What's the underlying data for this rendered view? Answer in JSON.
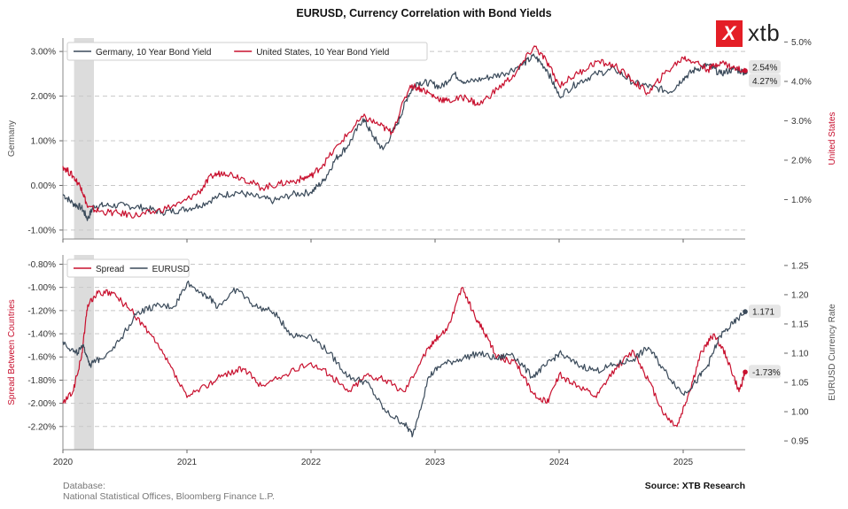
{
  "title": "EURUSD, Currency Correlation with Bond Yields",
  "logo": {
    "mark": "X",
    "text": "xtb"
  },
  "footer": {
    "database_label": "Database:",
    "database_sources": "National Statistical Offices, Bloomberg Finance L.P.",
    "source": "Source: XTB Research"
  },
  "colors": {
    "germany": "#3a4a5a",
    "us": "#c8102e",
    "spread": "#c8102e",
    "eurusd": "#3a4a5a",
    "shade": "#dcdcdc"
  },
  "chart_data": [
    {
      "type": "line",
      "panel": "top",
      "x_ticks": [
        "2020",
        "2021",
        "2022",
        "2023",
        "2024",
        "2025"
      ],
      "left_axis": {
        "label": "Germany",
        "ticks": [
          "-1.00%",
          "0.00%",
          "1.00%",
          "2.00%",
          "3.00%"
        ],
        "ylim": [
          -1.2,
          3.3
        ]
      },
      "right_axis": {
        "label": "United States",
        "ticks": [
          "1.0%",
          "2.0%",
          "3.0%",
          "4.0%",
          "5.0%"
        ],
        "ylim": [
          0.0,
          5.1
        ]
      },
      "shaded_region": {
        "start": 2020.09,
        "end": 2020.25
      },
      "legend": {
        "position": "top-left",
        "entries": [
          "Germany, 10 Year Bond Yield",
          "United States, 10 Year Bond Yield"
        ]
      },
      "end_labels": [
        "2.54%",
        "4.27%"
      ],
      "series": [
        {
          "name": "Germany, 10 Year Bond Yield",
          "axis": "left",
          "x": [
            2020.0,
            2020.08,
            2020.15,
            2020.2,
            2020.25,
            2020.35,
            2020.5,
            2020.65,
            2020.8,
            2020.95,
            2021.1,
            2021.25,
            2021.4,
            2021.55,
            2021.7,
            2021.85,
            2022.0,
            2022.1,
            2022.2,
            2022.3,
            2022.42,
            2022.5,
            2022.58,
            2022.7,
            2022.78,
            2022.85,
            2022.95,
            2023.05,
            2023.15,
            2023.25,
            2023.4,
            2023.55,
            2023.7,
            2023.8,
            2023.9,
            2024.0,
            2024.15,
            2024.3,
            2024.45,
            2024.6,
            2024.75,
            2024.9,
            2025.0,
            2025.1,
            2025.2,
            2025.3,
            2025.4,
            2025.5
          ],
          "y": [
            -0.2,
            -0.4,
            -0.5,
            -0.75,
            -0.45,
            -0.45,
            -0.45,
            -0.5,
            -0.6,
            -0.55,
            -0.45,
            -0.25,
            -0.15,
            -0.25,
            -0.35,
            -0.2,
            -0.15,
            0.1,
            0.6,
            0.9,
            1.5,
            1.1,
            0.8,
            1.4,
            2.0,
            2.3,
            2.3,
            2.2,
            2.5,
            2.3,
            2.4,
            2.5,
            2.7,
            2.9,
            2.6,
            2.0,
            2.3,
            2.5,
            2.6,
            2.3,
            2.2,
            2.1,
            2.4,
            2.6,
            2.7,
            2.5,
            2.6,
            2.54
          ]
        },
        {
          "name": "United States, 10 Year Bond Yield",
          "axis": "right",
          "x": [
            2020.0,
            2020.08,
            2020.15,
            2020.2,
            2020.3,
            2020.45,
            2020.6,
            2020.75,
            2020.95,
            2021.1,
            2021.2,
            2021.3,
            2021.45,
            2021.6,
            2021.75,
            2021.9,
            2022.0,
            2022.1,
            2022.25,
            2022.42,
            2022.55,
            2022.65,
            2022.8,
            2022.9,
            2023.0,
            2023.1,
            2023.25,
            2023.35,
            2023.5,
            2023.65,
            2023.8,
            2023.9,
            2024.0,
            2024.15,
            2024.3,
            2024.45,
            2024.6,
            2024.72,
            2024.85,
            2025.0,
            2025.1,
            2025.2,
            2025.3,
            2025.4,
            2025.5
          ],
          "y": [
            1.85,
            1.6,
            1.3,
            0.8,
            0.7,
            0.65,
            0.6,
            0.7,
            0.9,
            1.2,
            1.6,
            1.7,
            1.55,
            1.3,
            1.4,
            1.5,
            1.6,
            1.9,
            2.5,
            3.1,
            2.9,
            2.7,
            3.9,
            3.8,
            3.6,
            3.5,
            3.6,
            3.4,
            3.8,
            4.2,
            4.9,
            4.5,
            3.9,
            4.2,
            4.5,
            4.4,
            4.0,
            3.7,
            4.2,
            4.6,
            4.5,
            4.3,
            4.5,
            4.35,
            4.27
          ]
        }
      ]
    },
    {
      "type": "line",
      "panel": "bottom",
      "x_ticks": [
        "2020",
        "2021",
        "2022",
        "2023",
        "2024",
        "2025"
      ],
      "left_axis": {
        "label": "Spread Between Countries",
        "ticks": [
          "-2.20%",
          "-2.00%",
          "-1.80%",
          "-1.60%",
          "-1.40%",
          "-1.20%",
          "-1.00%",
          "-0.80%"
        ],
        "ylim": [
          -2.4,
          -0.72
        ]
      },
      "right_axis": {
        "label": "EURUSD Currency Rate",
        "ticks": [
          "0.95",
          "1.00",
          "1.05",
          "1.10",
          "1.15",
          "1.20",
          "1.25"
        ],
        "ylim": [
          0.935,
          1.268
        ]
      },
      "shaded_region": {
        "start": 2020.09,
        "end": 2020.25
      },
      "legend": {
        "position": "top-left",
        "entries": [
          "Spread",
          "EURUSD"
        ]
      },
      "end_labels": [
        "1.171",
        "-1.73%"
      ],
      "series": [
        {
          "name": "Spread",
          "axis": "left",
          "x": [
            2020.0,
            2020.08,
            2020.15,
            2020.2,
            2020.28,
            2020.4,
            2020.55,
            2020.7,
            2020.85,
            2021.0,
            2021.15,
            2021.3,
            2021.45,
            2021.6,
            2021.8,
            2022.0,
            2022.15,
            2022.3,
            2022.45,
            2022.6,
            2022.75,
            2022.9,
            2023.0,
            2023.1,
            2023.22,
            2023.3,
            2023.4,
            2023.5,
            2023.65,
            2023.78,
            2023.9,
            2024.0,
            2024.15,
            2024.3,
            2024.45,
            2024.6,
            2024.72,
            2024.85,
            2024.95,
            2025.05,
            2025.15,
            2025.25,
            2025.35,
            2025.45,
            2025.5
          ],
          "y": [
            -2.0,
            -1.9,
            -1.6,
            -1.15,
            -1.05,
            -1.05,
            -1.2,
            -1.4,
            -1.65,
            -1.95,
            -1.85,
            -1.75,
            -1.7,
            -1.85,
            -1.75,
            -1.65,
            -1.75,
            -1.9,
            -1.75,
            -1.8,
            -1.9,
            -1.6,
            -1.45,
            -1.35,
            -1.0,
            -1.2,
            -1.4,
            -1.6,
            -1.65,
            -1.9,
            -2.0,
            -1.75,
            -1.85,
            -1.95,
            -1.7,
            -1.55,
            -1.8,
            -2.1,
            -2.2,
            -1.9,
            -1.55,
            -1.4,
            -1.6,
            -1.9,
            -1.73
          ]
        },
        {
          "name": "EURUSD",
          "axis": "right",
          "x": [
            2020.0,
            2020.1,
            2020.17,
            2020.22,
            2020.3,
            2020.45,
            2020.6,
            2020.75,
            2020.9,
            2021.0,
            2021.15,
            2021.25,
            2021.4,
            2021.55,
            2021.7,
            2021.85,
            2022.0,
            2022.15,
            2022.3,
            2022.45,
            2022.6,
            2022.75,
            2022.82,
            2022.95,
            2023.05,
            2023.2,
            2023.35,
            2023.5,
            2023.62,
            2023.78,
            2023.9,
            2024.0,
            2024.15,
            2024.3,
            2024.45,
            2024.6,
            2024.72,
            2024.85,
            2025.0,
            2025.1,
            2025.2,
            2025.3,
            2025.4,
            2025.5
          ],
          "y": [
            1.12,
            1.1,
            1.11,
            1.08,
            1.09,
            1.12,
            1.17,
            1.18,
            1.18,
            1.22,
            1.2,
            1.18,
            1.21,
            1.18,
            1.17,
            1.13,
            1.13,
            1.1,
            1.06,
            1.05,
            1.0,
            0.98,
            0.96,
            1.06,
            1.08,
            1.09,
            1.1,
            1.09,
            1.1,
            1.06,
            1.08,
            1.1,
            1.08,
            1.07,
            1.08,
            1.09,
            1.11,
            1.07,
            1.03,
            1.05,
            1.08,
            1.13,
            1.15,
            1.171
          ]
        }
      ]
    }
  ]
}
